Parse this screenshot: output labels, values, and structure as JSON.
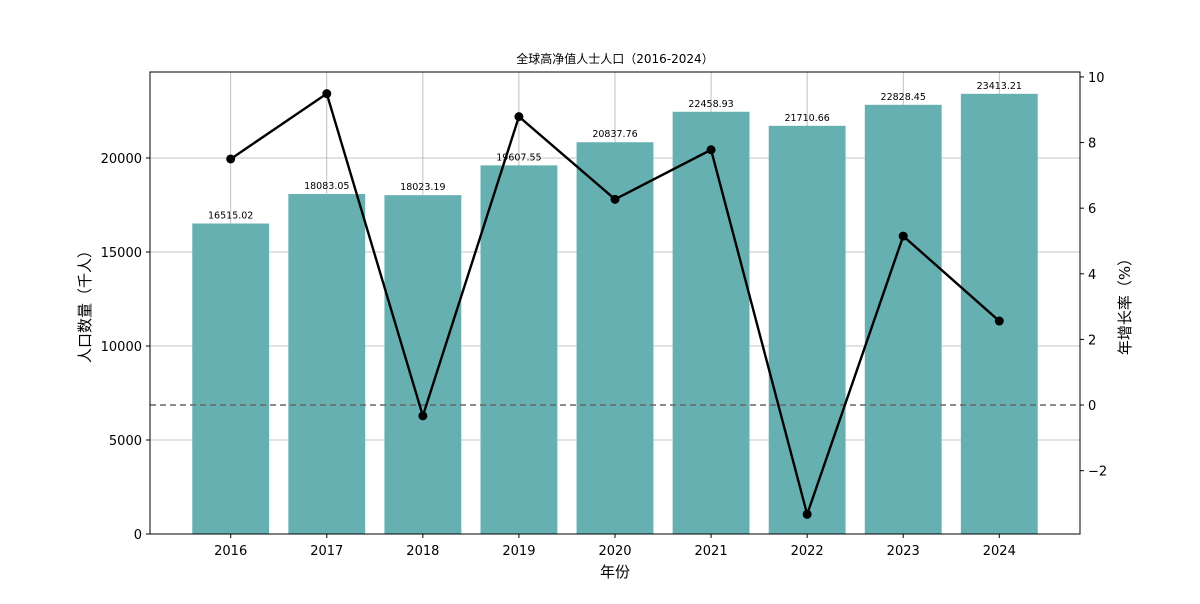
{
  "chart_data": {
    "type": "bar+line",
    "title": "全球高净值人士人口（2016-2024）",
    "xlabel": "年份",
    "ylabel": "人口数量（千人）",
    "y2label": "年增长率（%）",
    "categories": [
      "2016",
      "2017",
      "2018",
      "2019",
      "2020",
      "2021",
      "2022",
      "2023",
      "2024"
    ],
    "series": [
      {
        "kind": "bar",
        "axis": "left",
        "color": "#66b0b2",
        "values": [
          16515.02,
          18083.05,
          18023.19,
          19607.55,
          20837.76,
          22458.93,
          21710.66,
          22828.45,
          23413.21
        ],
        "labels": [
          "16515.02",
          "18083.05",
          "18023.19",
          "19607.55",
          "20837.76",
          "22458.93",
          "21710.66",
          "22828.45",
          "23413.21"
        ]
      },
      {
        "kind": "line",
        "axis": "right",
        "color": "#000000",
        "marker": "circle",
        "values": [
          7.5,
          9.49,
          -0.33,
          8.79,
          6.27,
          7.78,
          -3.33,
          5.15,
          2.56
        ]
      }
    ],
    "ylim": [
      0,
      24574
    ],
    "yticks": [
      0,
      5000,
      10000,
      15000,
      20000
    ],
    "y2lim": [
      -3.93,
      10.15
    ],
    "y2ticks": [
      -2,
      0,
      2,
      4,
      6,
      8,
      10
    ],
    "y2tick_labels": [
      "−2",
      "0",
      "2",
      "4",
      "6",
      "8",
      "10"
    ],
    "reference_line": {
      "axis": "right",
      "value": 0,
      "style": "dashed",
      "color": "#666666"
    },
    "grid": true
  }
}
